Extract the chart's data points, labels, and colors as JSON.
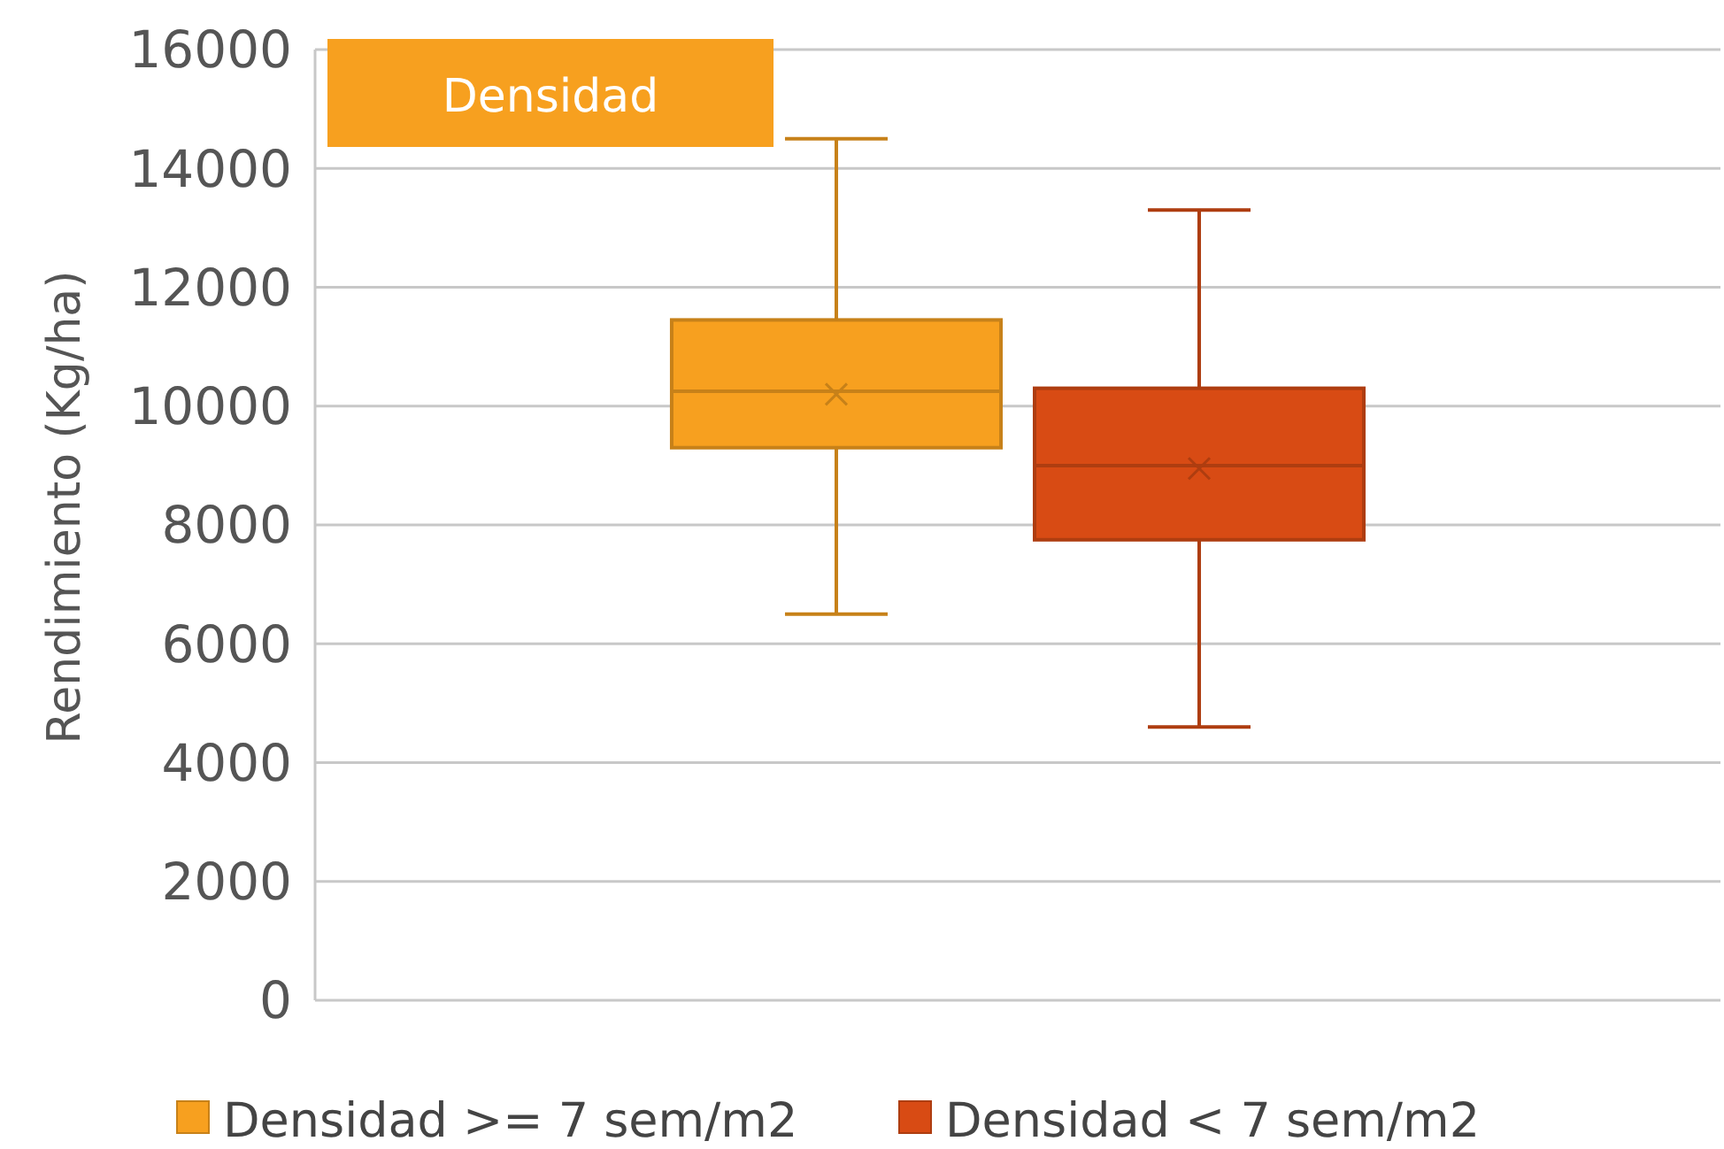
{
  "chart_data": {
    "type": "box",
    "title": "Densidad",
    "ylabel": "Rendimiento (Kg/ha)",
    "categories": [
      null
    ],
    "series": [
      {
        "name": "Densidad >= 7 sem/m2",
        "color": "#f7a01f",
        "boxes": [
          {
            "low": 6500,
            "q1": 9300,
            "median": 10250,
            "q3": 11450,
            "high": 14500,
            "mean": 10200
          }
        ]
      },
      {
        "name": "Densidad < 7 sem/m2",
        "color": "#d84b14",
        "boxes": [
          {
            "low": 4600,
            "q1": 7750,
            "median": 9000,
            "q3": 10300,
            "high": 13300,
            "mean": 8950
          }
        ]
      }
    ],
    "ylim": [
      0,
      16000
    ],
    "yticks": [
      0,
      2000,
      4000,
      6000,
      8000,
      10000,
      12000,
      14000,
      16000
    ],
    "grid": "y",
    "legend": "bottom",
    "marker": "cross"
  }
}
